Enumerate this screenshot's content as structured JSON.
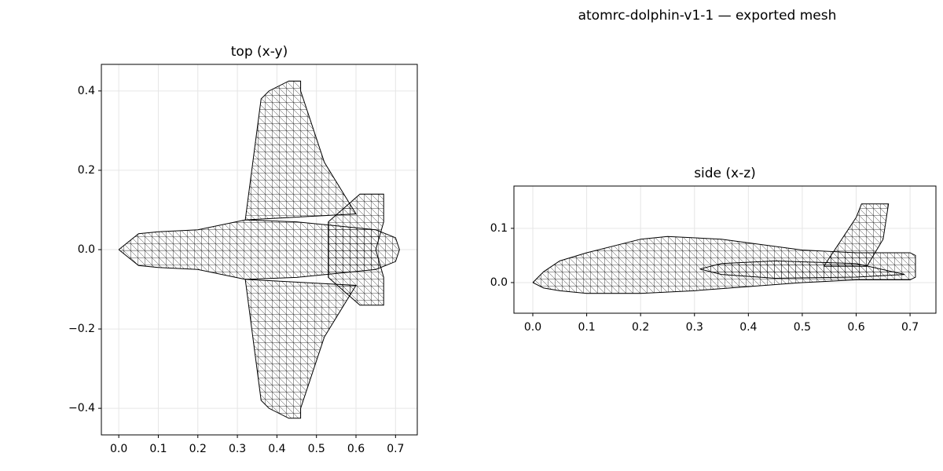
{
  "title": "atomrc-dolphin-v1-1 — exported mesh",
  "chart_data": [
    {
      "type": "line",
      "title": "top (x-y)",
      "color": "#000000",
      "grid": true,
      "xlim": [
        -0.044,
        0.755
      ],
      "ylim": [
        -0.467,
        0.467
      ],
      "xticks": [
        {
          "value": 0,
          "label": "0.0"
        },
        {
          "value": 0.1,
          "label": "0.1"
        },
        {
          "value": 0.2,
          "label": "0.2"
        },
        {
          "value": 0.3,
          "label": "0.3"
        },
        {
          "value": 0.4,
          "label": "0.4"
        },
        {
          "value": 0.5,
          "label": "0.5"
        },
        {
          "value": 0.6,
          "label": "0.6"
        },
        {
          "value": 0.7,
          "label": "0.7"
        }
      ],
      "yticks": [
        {
          "value": -0.4,
          "label": "−0.4"
        },
        {
          "value": -0.2,
          "label": "−0.2"
        },
        {
          "value": 0,
          "label": "0.0"
        },
        {
          "value": 0.2,
          "label": "0.2"
        },
        {
          "value": 0.4,
          "label": "0.4"
        }
      ],
      "series": [
        {
          "x": [
            0,
            0.05,
            0.1,
            0.2,
            0.32,
            0.45,
            0.55,
            0.65,
            0.7,
            0.71,
            0.7,
            0.65,
            0.55,
            0.45,
            0.32,
            0.2,
            0.1,
            0.05,
            0
          ],
          "values": [
            0,
            0.04,
            0.045,
            0.05,
            0.075,
            0.07,
            0.06,
            0.05,
            0.03,
            0,
            -0.03,
            -0.05,
            -0.06,
            -0.07,
            -0.075,
            -0.05,
            -0.045,
            -0.04,
            0
          ]
        },
        {
          "x": [
            0.32,
            0.36,
            0.38,
            0.43,
            0.46,
            0.46,
            0.52,
            0.6,
            0.32
          ],
          "values": [
            0.075,
            0.38,
            0.4,
            0.425,
            0.425,
            0.4,
            0.22,
            0.09,
            0.075
          ]
        },
        {
          "x": [
            0.32,
            0.36,
            0.38,
            0.43,
            0.46,
            0.46,
            0.52,
            0.6,
            0.32
          ],
          "values": [
            -0.075,
            -0.38,
            -0.4,
            -0.425,
            -0.425,
            -0.4,
            -0.22,
            -0.09,
            -0.075
          ]
        },
        {
          "x": [
            0.53,
            0.61,
            0.67,
            0.67,
            0.65,
            0.67,
            0.67,
            0.61,
            0.53,
            0.53
          ],
          "values": [
            0.07,
            0.14,
            0.14,
            0.07,
            0,
            -0.07,
            -0.14,
            -0.14,
            -0.07,
            0.07
          ]
        }
      ]
    },
    {
      "type": "line",
      "title": "side (x-z)",
      "color": "#000000",
      "grid": true,
      "xlim": [
        -0.035,
        0.748
      ],
      "ylim": [
        -0.0565,
        0.178
      ],
      "xticks": [
        {
          "value": 0,
          "label": "0.0"
        },
        {
          "value": 0.1,
          "label": "0.1"
        },
        {
          "value": 0.2,
          "label": "0.2"
        },
        {
          "value": 0.3,
          "label": "0.3"
        },
        {
          "value": 0.4,
          "label": "0.4"
        },
        {
          "value": 0.5,
          "label": "0.5"
        },
        {
          "value": 0.6,
          "label": "0.6"
        },
        {
          "value": 0.7,
          "label": "0.7"
        }
      ],
      "yticks": [
        {
          "value": 0,
          "label": "0.0"
        },
        {
          "value": 0.1,
          "label": "0.1"
        }
      ],
      "series": [
        {
          "x": [
            0,
            0.02,
            0.05,
            0.1,
            0.2,
            0.25,
            0.35,
            0.5,
            0.6,
            0.7,
            0.71,
            0.71,
            0.7,
            0.6,
            0.5,
            0.3,
            0.2,
            0.1,
            0.05,
            0.02,
            0
          ],
          "values": [
            0,
            0.02,
            0.04,
            0.055,
            0.08,
            0.085,
            0.08,
            0.06,
            0.055,
            0.055,
            0.05,
            0.01,
            0.005,
            0.005,
            0,
            -0.015,
            -0.02,
            -0.02,
            -0.015,
            -0.01,
            0
          ]
        },
        {
          "x": [
            0.31,
            0.35,
            0.45,
            0.6,
            0.69,
            0.6,
            0.45,
            0.35,
            0.31
          ],
          "values": [
            0.025,
            0.035,
            0.04,
            0.035,
            0.015,
            0.01,
            0.008,
            0.015,
            0.025
          ]
        },
        {
          "x": [
            0.54,
            0.6,
            0.61,
            0.66,
            0.65,
            0.62,
            0.54
          ],
          "values": [
            0.03,
            0.12,
            0.145,
            0.145,
            0.08,
            0.03,
            0.03
          ]
        }
      ]
    }
  ]
}
